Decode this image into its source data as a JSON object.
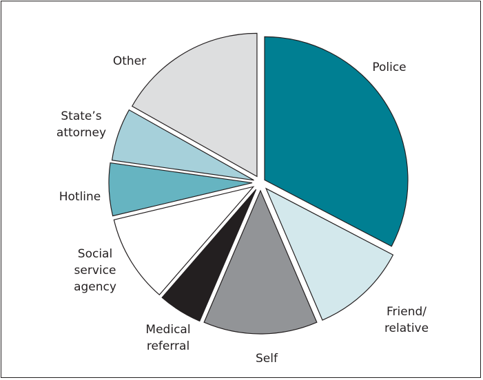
{
  "chart_data": {
    "type": "pie",
    "exploded": true,
    "start_angle_deg": 0,
    "direction": "clockwise",
    "slices": [
      {
        "label_lines": [
          "Police"
        ],
        "value": 33,
        "color": "#007f92"
      },
      {
        "label_lines": [
          "Friend/",
          "relative"
        ],
        "value": 11,
        "color": "#d3e8ec"
      },
      {
        "label_lines": [
          "Self"
        ],
        "value": 13,
        "color": "#929497"
      },
      {
        "label_lines": [
          "Medical",
          "referral"
        ],
        "value": 5,
        "color": "#231f20"
      },
      {
        "label_lines": [
          "Social",
          "service",
          "agency"
        ],
        "value": 10,
        "color": "#ffffff"
      },
      {
        "label_lines": [
          "Hotline"
        ],
        "value": 6,
        "color": "#66b4c1"
      },
      {
        "label_lines": [
          "State’s",
          "attorney"
        ],
        "value": 6,
        "color": "#a6d0da"
      },
      {
        "label_lines": [
          "Other"
        ],
        "value": 17,
        "color": "#dddedf"
      }
    ]
  }
}
